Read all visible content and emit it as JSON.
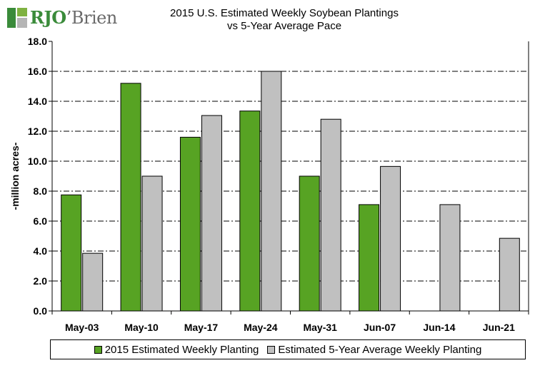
{
  "logo": {
    "text_strong": "RJO",
    "text_light": "’Brien",
    "colors": [
      "#3a8b3a",
      "#7fb241",
      "#b5b5b5"
    ]
  },
  "chart_data": {
    "type": "bar",
    "title": "2015 U.S. Estimated Weekly Soybean Plantings",
    "subtitle": "vs 5-Year Average Pace",
    "xlabel": "",
    "ylabel": "-million acres-",
    "ylim": [
      0,
      18
    ],
    "yticks": [
      "0.0",
      "2.0",
      "4.0",
      "6.0",
      "8.0",
      "10.0",
      "12.0",
      "14.0",
      "16.0",
      "18.0"
    ],
    "grid": true,
    "legend_position": "bottom",
    "categories": [
      "May-03",
      "May-10",
      "May-17",
      "May-24",
      "May-31",
      "Jun-07",
      "Jun-14",
      "Jun-21"
    ],
    "series": [
      {
        "name": "2015 Estimated Weekly Planting",
        "color": "#57a323",
        "values": [
          7.75,
          15.2,
          11.6,
          13.35,
          9.0,
          7.1,
          null,
          null
        ]
      },
      {
        "name": "Estimated 5-Year Average Weekly Planting",
        "color": "#c0c0c0",
        "values": [
          3.85,
          9.0,
          13.05,
          16.0,
          12.8,
          9.65,
          7.1,
          4.85
        ]
      }
    ]
  }
}
